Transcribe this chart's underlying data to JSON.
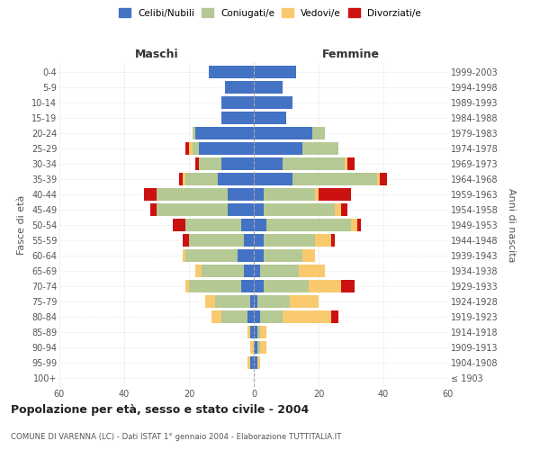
{
  "age_groups": [
    "100+",
    "95-99",
    "90-94",
    "85-89",
    "80-84",
    "75-79",
    "70-74",
    "65-69",
    "60-64",
    "55-59",
    "50-54",
    "45-49",
    "40-44",
    "35-39",
    "30-34",
    "25-29",
    "20-24",
    "15-19",
    "10-14",
    "5-9",
    "0-4"
  ],
  "birth_years": [
    "≤ 1903",
    "1904-1908",
    "1909-1913",
    "1914-1918",
    "1919-1923",
    "1924-1928",
    "1929-1933",
    "1934-1938",
    "1939-1943",
    "1944-1948",
    "1949-1953",
    "1954-1958",
    "1959-1963",
    "1964-1968",
    "1969-1973",
    "1974-1978",
    "1979-1983",
    "1984-1988",
    "1989-1993",
    "1994-1998",
    "1999-2003"
  ],
  "males": {
    "celibi": [
      0,
      1,
      0,
      1,
      2,
      1,
      4,
      3,
      5,
      3,
      4,
      8,
      8,
      11,
      10,
      17,
      18,
      10,
      10,
      9,
      14
    ],
    "coniugati": [
      0,
      0,
      0,
      0,
      8,
      11,
      16,
      13,
      16,
      17,
      17,
      22,
      22,
      10,
      7,
      2,
      1,
      0,
      0,
      0,
      0
    ],
    "vedovi": [
      0,
      1,
      1,
      1,
      3,
      3,
      1,
      2,
      1,
      0,
      0,
      0,
      0,
      1,
      0,
      1,
      0,
      0,
      0,
      0,
      0
    ],
    "divorziati": [
      0,
      0,
      0,
      0,
      0,
      0,
      0,
      0,
      0,
      2,
      4,
      2,
      4,
      1,
      1,
      1,
      0,
      0,
      0,
      0,
      0
    ]
  },
  "females": {
    "nubili": [
      0,
      1,
      1,
      1,
      2,
      1,
      3,
      2,
      3,
      3,
      4,
      3,
      3,
      12,
      9,
      15,
      18,
      10,
      12,
      9,
      13
    ],
    "coniugate": [
      0,
      0,
      1,
      1,
      7,
      10,
      14,
      12,
      12,
      16,
      26,
      22,
      16,
      26,
      19,
      11,
      4,
      0,
      0,
      0,
      0
    ],
    "vedove": [
      0,
      1,
      2,
      2,
      15,
      9,
      10,
      8,
      4,
      5,
      2,
      2,
      1,
      1,
      1,
      0,
      0,
      0,
      0,
      0,
      0
    ],
    "divorziate": [
      0,
      0,
      0,
      0,
      2,
      0,
      4,
      0,
      0,
      1,
      1,
      2,
      10,
      2,
      2,
      0,
      0,
      0,
      0,
      0,
      0
    ]
  },
  "colors": {
    "celibi": "#4472c4",
    "coniugati": "#b5c994",
    "vedovi": "#f9c96e",
    "divorziati": "#cc1111"
  },
  "title": "Popolazione per età, sesso e stato civile - 2004",
  "subtitle": "COMUNE DI VARENNA (LC) - Dati ISTAT 1° gennaio 2004 - Elaborazione TUTTITALIA.IT",
  "xlabel_left": "Maschi",
  "xlabel_right": "Femmine",
  "ylabel_left": "Fasce di età",
  "ylabel_right": "Anni di nascita",
  "xlim": 60,
  "bg_color": "#ffffff",
  "grid_color": "#cccccc"
}
